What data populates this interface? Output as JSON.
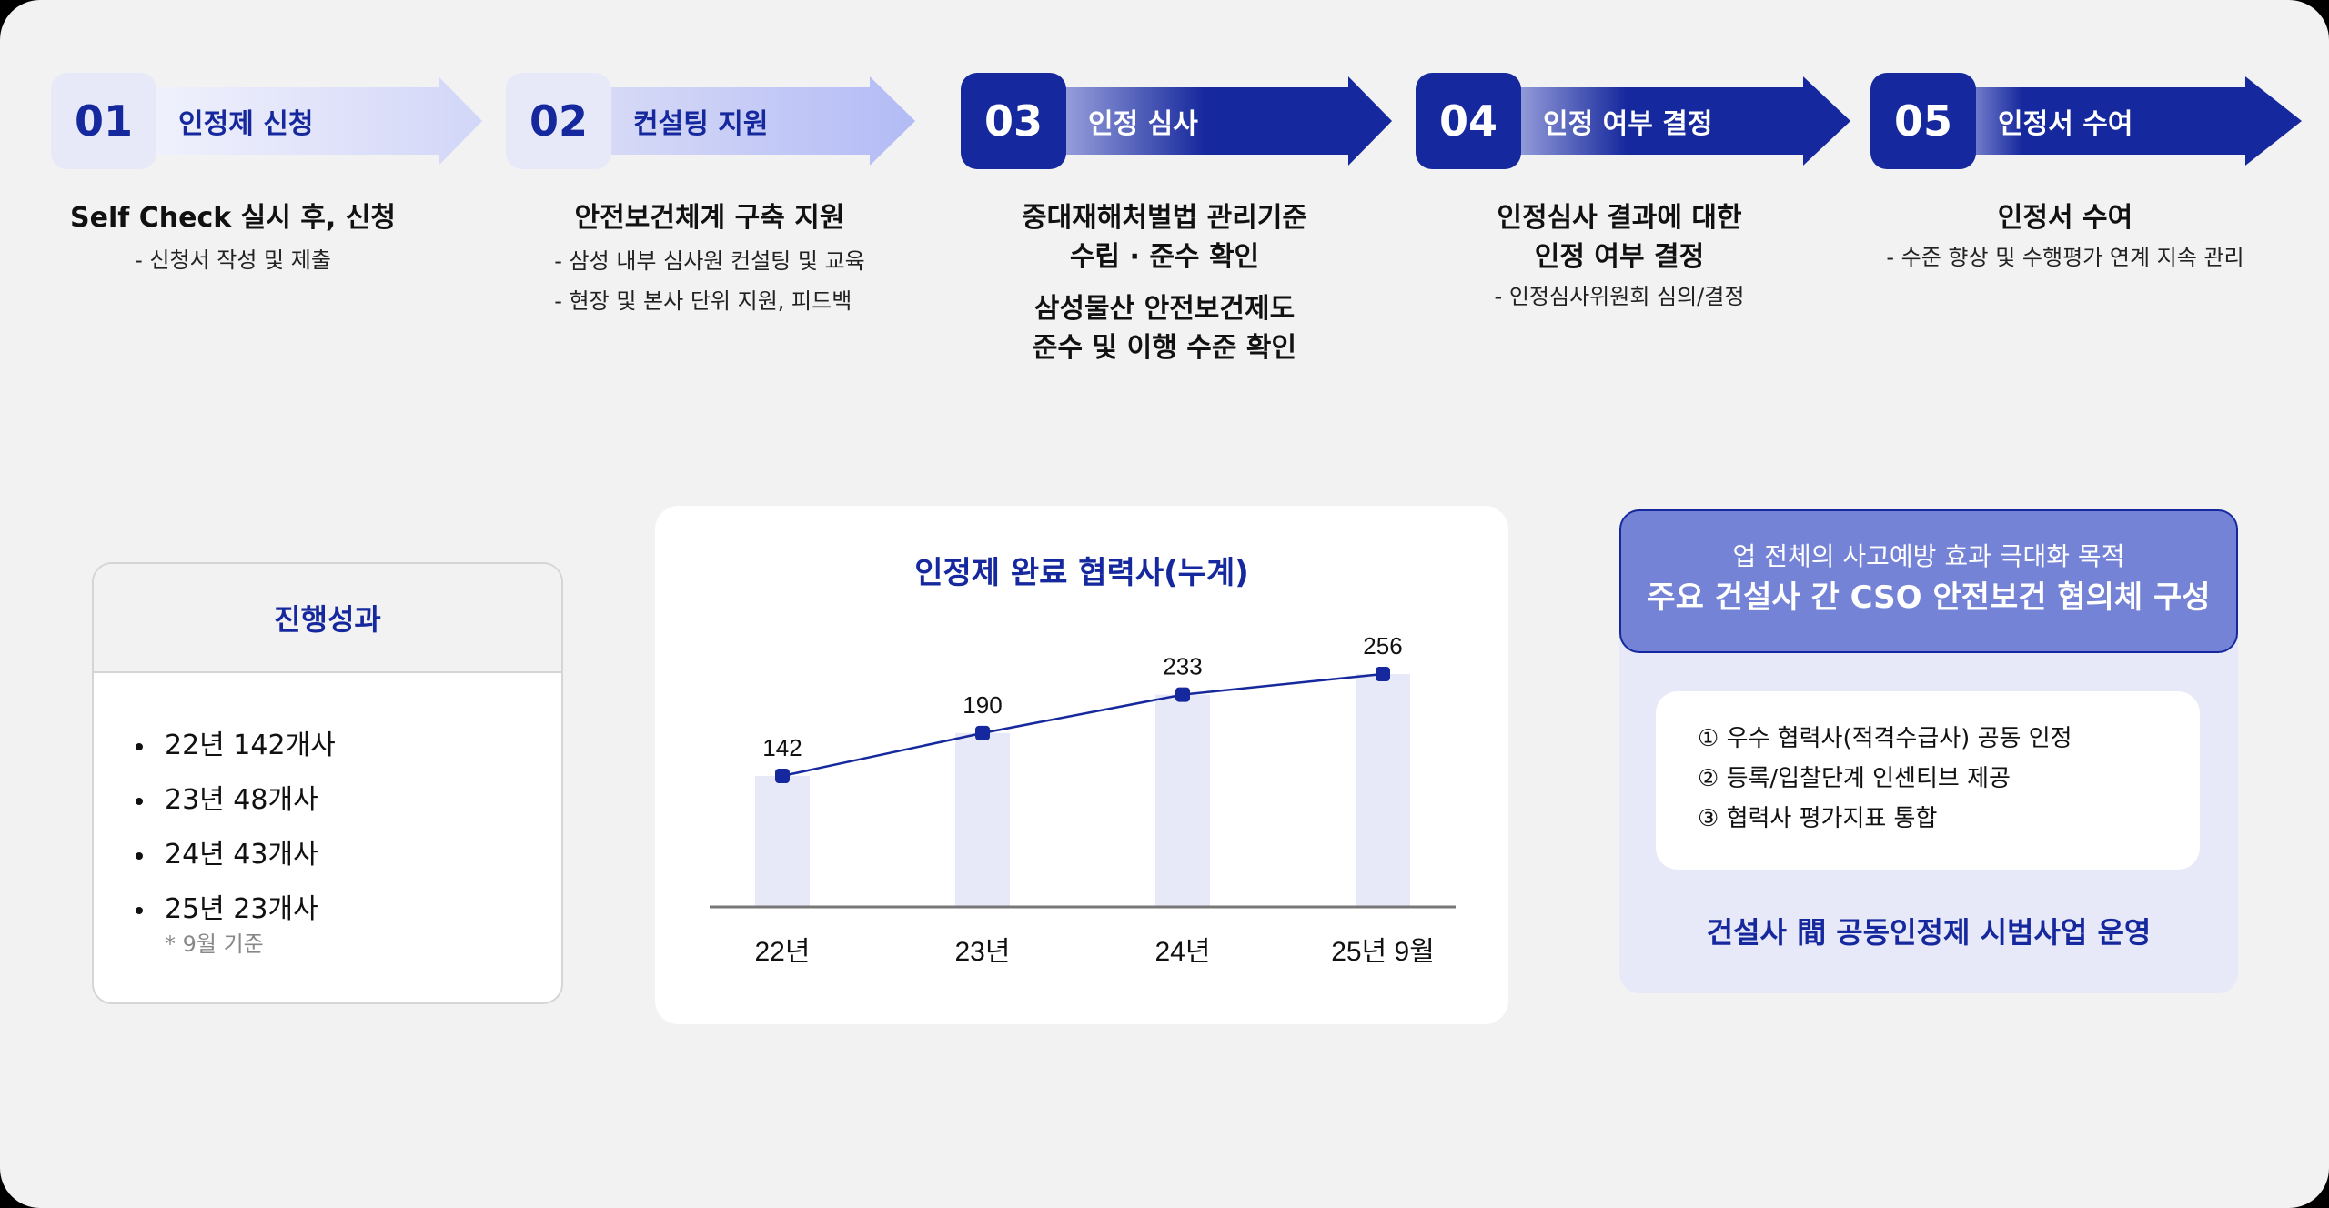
{
  "steps": [
    {
      "num": "01",
      "label": "인정제 신청",
      "style": "light",
      "titles": [
        "Self Check 실시 후, 신청"
      ],
      "subs": [
        "- 신청서 작성 및 제출"
      ]
    },
    {
      "num": "02",
      "label": "컨설팅 지원",
      "style": "light",
      "titles": [
        "안전보건체계 구축 지원"
      ],
      "subs": [
        "- 삼성 내부 심사원 컨설팅 및 교육",
        "- 현장 및 본사 단위 지원, 피드백"
      ]
    },
    {
      "num": "03",
      "label": "인정 심사",
      "style": "dark",
      "titles": [
        "중대재해처벌법 관리기준",
        "수립 · 준수 확인",
        "삼성물산 안전보건제도",
        "준수 및 이행 수준 확인"
      ],
      "subs": []
    },
    {
      "num": "04",
      "label": "인정 여부 결정",
      "style": "dark",
      "titles": [
        "인정심사 결과에 대한",
        "인정 여부 결정"
      ],
      "subs": [
        "- 인정심사위원회 심의/결정"
      ]
    },
    {
      "num": "05",
      "label": "인정서 수여",
      "style": "dark",
      "titles": [
        "인정서 수여"
      ],
      "subs": [
        "- 수준 향상 및 수행평가 연계 지속 관리"
      ]
    }
  ],
  "results": {
    "title": "진행성과",
    "items": [
      "22년 142개사",
      "23년 48개사",
      "24년 43개사",
      "25년 23개사"
    ],
    "note": "* 9월 기준"
  },
  "chart_data": {
    "type": "bar",
    "title": "인정제 완료 협력사(누계)",
    "categories": [
      "22년",
      "23년",
      "24년",
      "25년 9월"
    ],
    "values": [
      142,
      190,
      233,
      256
    ],
    "series": [
      {
        "name": "누계 (bar)",
        "values": [
          142,
          190,
          233,
          256
        ]
      },
      {
        "name": "누계 (line)",
        "values": [
          142,
          190,
          233,
          256
        ]
      }
    ],
    "xlabel": "",
    "ylabel": "",
    "data_labels": [
      "142",
      "190",
      "233",
      "256"
    ],
    "grid": false,
    "legend": "none",
    "colors": {
      "bar": "#e7e9f8",
      "line": "#16289d",
      "axis": "#777777"
    }
  },
  "council": {
    "line1": "업 전체의 사고예방 효과 극대화 목적",
    "line2": "주요 건설사 간 CSO 안전보건 협의체 구성",
    "items": [
      "① 우수 협력사(적격수급사) 공동 인정",
      "② 등록/입찰단계 인센티브 제공",
      "③ 협력사 평가지표 통합"
    ],
    "footer": "건설사 間 공동인정제 시범사업 운영"
  },
  "colors": {
    "brand": "#16289d",
    "light_box": "#e7e9f8",
    "council_header": "#7583d6",
    "page_bg": "#f2f2f2"
  }
}
